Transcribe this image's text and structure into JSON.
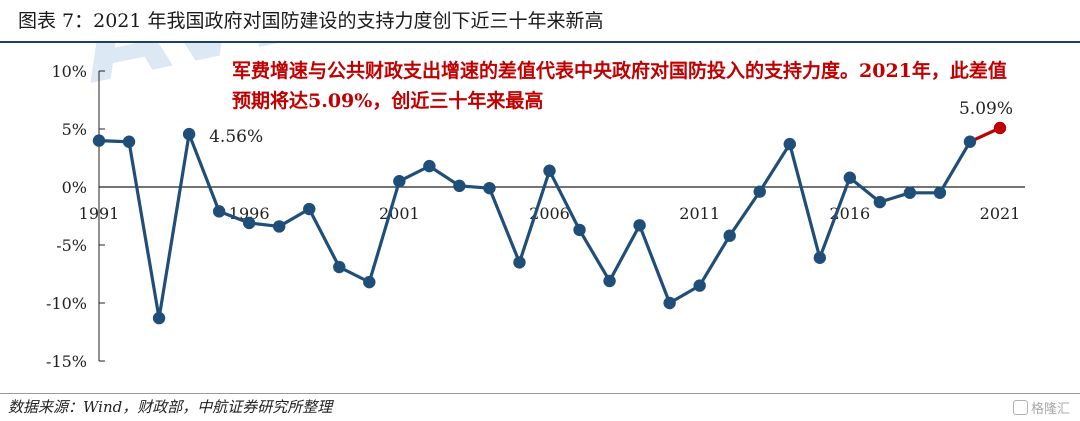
{
  "header": {
    "title": "图表 7：2021 年我国政府对国防建设的支持力度创下近三十年来新高"
  },
  "source": {
    "text": "数据来源：Wind，财政部，中航证券研究所整理"
  },
  "watermark": {
    "text": "格隆汇"
  },
  "chart_data": {
    "type": "line",
    "x": [
      1991,
      1992,
      1993,
      1994,
      1995,
      1996,
      1997,
      1998,
      1999,
      2000,
      2001,
      2002,
      2003,
      2004,
      2005,
      2006,
      2007,
      2008,
      2009,
      2010,
      2011,
      2012,
      2013,
      2014,
      2015,
      2016,
      2017,
      2018,
      2019,
      2020,
      2021
    ],
    "values": [
      4.0,
      3.9,
      -11.3,
      4.56,
      -2.1,
      -3.1,
      -3.4,
      -1.9,
      -6.9,
      -8.2,
      0.5,
      1.8,
      0.1,
      -0.1,
      -6.5,
      1.4,
      -3.7,
      -8.1,
      -3.3,
      -10.0,
      -8.5,
      -4.2,
      -0.4,
      3.7,
      -6.1,
      0.8,
      -1.3,
      -0.5,
      -0.5,
      3.9,
      5.09
    ],
    "highlight_color": "#c00000",
    "line_color": "#1f4e79",
    "ylim": [
      -15,
      10
    ],
    "y_ticks": [
      10,
      5,
      0,
      -5,
      -10,
      -15
    ],
    "y_tick_labels": [
      "10%",
      "5%",
      "0%",
      "-5%",
      "-10%",
      "-15%"
    ],
    "x_tick_labels": [
      "1991",
      "1996",
      "2001",
      "2006",
      "2011",
      "2016",
      "2021"
    ],
    "data_labels": [
      {
        "x": 1994,
        "text": "4.56%"
      },
      {
        "x": 2021,
        "text": "5.09%"
      }
    ],
    "annotation": "军费增速与公共财政支出增速的差值代表中央政府对国防投入的支持力度。2021年，此差值预期将达5.09%，创近三十年来最高",
    "grid": false
  }
}
